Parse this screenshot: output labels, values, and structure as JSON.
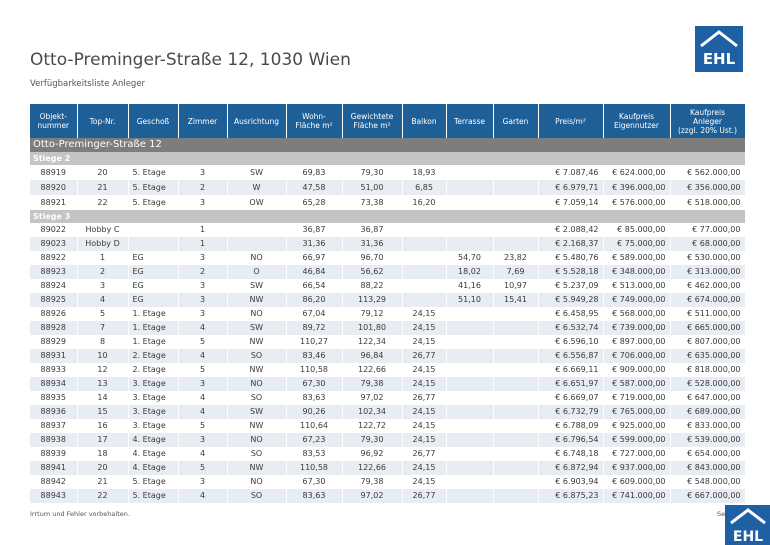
{
  "header": {
    "title": "Otto-Preminger-Straße 12, 1030 Wien",
    "subtitle": "Verfügbarkeitsliste Anleger",
    "logo": "EHL"
  },
  "table": {
    "columns": [
      "Objekt-\nnummer",
      "Top-Nr.",
      "Geschoß",
      "Zimmer",
      "Ausrichtung",
      "Wohn-\nFläche m²",
      "Gewichtete\nFläche m²",
      "Balkon",
      "Terrasse",
      "Garten",
      "Preis/m²",
      "Kaufpreis\nEigennutzer",
      "Kaufpreis\nAnleger\n(zzgl. 20% Ust.)"
    ],
    "section": "Otto-Preminger-Straße 12",
    "groups": [
      {
        "label": "Stiege 2",
        "rows": [
          [
            "88919",
            "20",
            "5. Etage",
            "3",
            "SW",
            "69,83",
            "79,30",
            "18,93",
            null,
            null,
            "€ 7.087,46",
            "€ 624.000,00",
            "€ 562.000,00"
          ],
          [
            "88920",
            "21",
            "5. Etage",
            "2",
            "W",
            "47,58",
            "51,00",
            "6,85",
            null,
            null,
            "€ 6.979,71",
            "€ 396.000,00",
            "€ 356.000,00"
          ],
          [
            "88921",
            "22",
            "5. Etage",
            "3",
            "OW",
            "65,28",
            "73,38",
            "16,20",
            null,
            null,
            "€ 7.059,14",
            "€ 576.000,00",
            "€ 518.000,00"
          ]
        ]
      },
      {
        "label": "Stiege 3",
        "rows": [
          [
            "89022",
            "Hobby C",
            null,
            "1",
            null,
            "36,87",
            "36,87",
            null,
            null,
            null,
            "€ 2.088,42",
            "€ 85.000,00",
            "€ 77.000,00"
          ],
          [
            "89023",
            "Hobby D",
            null,
            "1",
            null,
            "31,36",
            "31,36",
            null,
            null,
            null,
            "€ 2.168,37",
            "€ 75.000,00",
            "€ 68.000,00"
          ],
          [
            "88922",
            "1",
            "EG",
            "3",
            "NO",
            "66,97",
            "96,70",
            null,
            "54,70",
            "23,82",
            "€ 5.480,76",
            "€ 589.000,00",
            "€ 530.000,00"
          ],
          [
            "88923",
            "2",
            "EG",
            "2",
            "O",
            "46,84",
            "56,62",
            null,
            "18,02",
            "7,69",
            "€ 5.528,18",
            "€ 348.000,00",
            "€ 313.000,00"
          ],
          [
            "88924",
            "3",
            "EG",
            "3",
            "SW",
            "66,54",
            "88,22",
            null,
            "41,16",
            "10,97",
            "€ 5.237,09",
            "€ 513.000,00",
            "€ 462.000,00"
          ],
          [
            "88925",
            "4",
            "EG",
            "3",
            "NW",
            "86,20",
            "113,29",
            null,
            "51,10",
            "15,41",
            "€ 5.949,28",
            "€ 749.000,00",
            "€ 674.000,00"
          ],
          [
            "88926",
            "5",
            "1. Etage",
            "3",
            "NO",
            "67,04",
            "79,12",
            "24,15",
            null,
            null,
            "€ 6.458,95",
            "€ 568.000,00",
            "€ 511.000,00"
          ],
          [
            "88928",
            "7",
            "1. Etage",
            "4",
            "SW",
            "89,72",
            "101,80",
            "24,15",
            null,
            null,
            "€ 6.532,74",
            "€ 739.000,00",
            "€ 665.000,00"
          ],
          [
            "88929",
            "8",
            "1. Etage",
            "5",
            "NW",
            "110,27",
            "122,34",
            "24,15",
            null,
            null,
            "€ 6.596,10",
            "€ 897.000,00",
            "€ 807.000,00"
          ],
          [
            "88931",
            "10",
            "2. Etage",
            "4",
            "SO",
            "83,46",
            "96,84",
            "26,77",
            null,
            null,
            "€ 6.556,87",
            "€ 706.000,00",
            "€ 635.000,00"
          ],
          [
            "88933",
            "12",
            "2. Etage",
            "5",
            "NW",
            "110,58",
            "122,66",
            "24,15",
            null,
            null,
            "€ 6.669,11",
            "€ 909.000,00",
            "€ 818.000,00"
          ],
          [
            "88934",
            "13",
            "3. Etage",
            "3",
            "NO",
            "67,30",
            "79,38",
            "24,15",
            null,
            null,
            "€ 6.651,97",
            "€ 587.000,00",
            "€ 528.000,00"
          ],
          [
            "88935",
            "14",
            "3. Etage",
            "4",
            "SO",
            "83,63",
            "97,02",
            "26,77",
            null,
            null,
            "€ 6.669,07",
            "€ 719.000,00",
            "€ 647.000,00"
          ],
          [
            "88936",
            "15",
            "3. Etage",
            "4",
            "SW",
            "90,26",
            "102,34",
            "24,15",
            null,
            null,
            "€ 6.732,79",
            "€ 765.000,00",
            "€ 689.000,00"
          ],
          [
            "88937",
            "16",
            "3. Etage",
            "5",
            "NW",
            "110,64",
            "122,72",
            "24,15",
            null,
            null,
            "€ 6.788,09",
            "€ 925.000,00",
            "€ 833.000,00"
          ],
          [
            "88938",
            "17",
            "4. Etage",
            "3",
            "NO",
            "67,23",
            "79,30",
            "24,15",
            null,
            null,
            "€ 6.796,54",
            "€ 599.000,00",
            "€ 539.000,00"
          ],
          [
            "88939",
            "18",
            "4. Etage",
            "4",
            "SO",
            "83,53",
            "96,92",
            "26,77",
            null,
            null,
            "€ 6.748,18",
            "€ 727.000,00",
            "€ 654.000,00"
          ],
          [
            "88941",
            "20",
            "4. Etage",
            "5",
            "NW",
            "110,58",
            "122,66",
            "24,15",
            null,
            null,
            "€ 6.872,94",
            "€ 937.000,00",
            "€ 843.000,00"
          ],
          [
            "88942",
            "21",
            "5. Etage",
            "3",
            "NO",
            "67,30",
            "79,38",
            "24,15",
            null,
            null,
            "€ 6.903,94",
            "€ 609.000,00",
            "€ 548.000,00"
          ],
          [
            "88943",
            "22",
            "5. Etage",
            "4",
            "SO",
            "83,63",
            "97,02",
            "26,77",
            null,
            null,
            "€ 6.875,23",
            "€ 741.000,00",
            "€ 667.000,00"
          ]
        ]
      }
    ]
  },
  "footer": {
    "note": "Irrtum und Fehler vorbehalten.",
    "page": "Sei",
    "logo": "EHL"
  }
}
